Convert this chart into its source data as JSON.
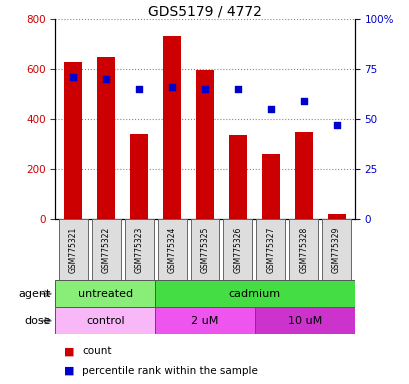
{
  "title": "GDS5179 / 4772",
  "samples": [
    "GSM775321",
    "GSM775322",
    "GSM775323",
    "GSM775324",
    "GSM775325",
    "GSM775326",
    "GSM775327",
    "GSM775328",
    "GSM775329"
  ],
  "counts": [
    630,
    648,
    340,
    733,
    598,
    335,
    260,
    347,
    18
  ],
  "percentile_ranks": [
    71,
    70,
    65,
    66,
    65,
    65,
    55,
    59,
    47
  ],
  "ylim_left": [
    0,
    800
  ],
  "ylim_right": [
    0,
    100
  ],
  "yticks_left": [
    0,
    200,
    400,
    600,
    800
  ],
  "yticks_right": [
    0,
    25,
    50,
    75,
    100
  ],
  "bar_color": "#cc0000",
  "dot_color": "#0000cc",
  "agent_labels": [
    {
      "label": "untreated",
      "start": 0,
      "end": 3,
      "color": "#88ee77"
    },
    {
      "label": "cadmium",
      "start": 3,
      "end": 9,
      "color": "#44dd44"
    }
  ],
  "dose_labels": [
    {
      "label": "control",
      "start": 0,
      "end": 3,
      "color": "#f8b8f8"
    },
    {
      "label": "2 uM",
      "start": 3,
      "end": 6,
      "color": "#ee55ee"
    },
    {
      "label": "10 uM",
      "start": 6,
      "end": 9,
      "color": "#cc33cc"
    }
  ],
  "legend_count_color": "#cc0000",
  "legend_pct_color": "#0000cc",
  "grid_color": "#888888",
  "tick_color_left": "#cc0000",
  "tick_color_right": "#0000cc",
  "sample_box_color": "#dddddd",
  "bar_width": 0.55,
  "dot_size": 25
}
